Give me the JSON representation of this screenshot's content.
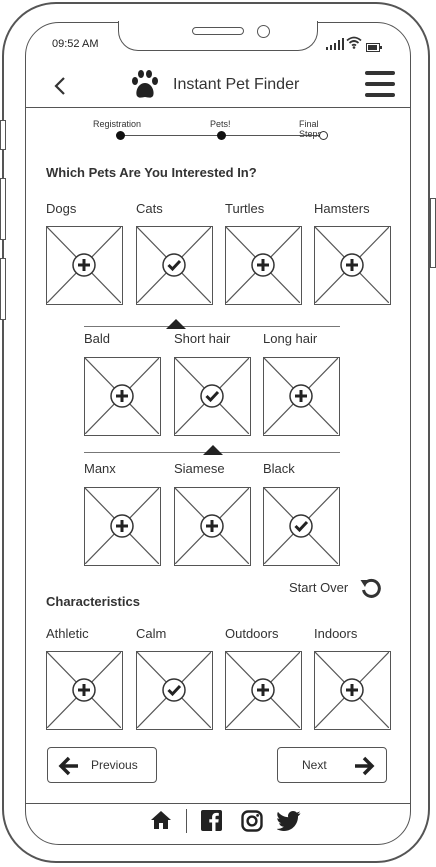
{
  "status_bar": {
    "time": "09:52 AM"
  },
  "header": {
    "title": "Instant Pet Finder",
    "logo_icon": "paw-icon"
  },
  "progress": {
    "steps": [
      "Registration",
      "Pets!",
      "Final Steps"
    ],
    "completed_steps": 2
  },
  "pets_section": {
    "heading": "Which Pets Are You Interested In?",
    "items": [
      {
        "label": "Dogs",
        "state": "add"
      },
      {
        "label": "Cats",
        "state": "checked"
      },
      {
        "label": "Turtles",
        "state": "add"
      },
      {
        "label": "Hamsters",
        "state": "add"
      }
    ]
  },
  "cat_hair": {
    "items": [
      {
        "label": "Bald",
        "state": "add"
      },
      {
        "label": "Short hair",
        "state": "checked"
      },
      {
        "label": "Long hair",
        "state": "add"
      }
    ]
  },
  "cat_breed": {
    "items": [
      {
        "label": "Manx",
        "state": "add"
      },
      {
        "label": "Siamese",
        "state": "add"
      },
      {
        "label": "Black",
        "state": "checked"
      }
    ]
  },
  "start_over": {
    "label": "Start Over"
  },
  "characteristics": {
    "heading": "Characteristics",
    "items": [
      {
        "label": "Athletic",
        "state": "add"
      },
      {
        "label": "Calm",
        "state": "checked"
      },
      {
        "label": "Outdoors",
        "state": "add"
      },
      {
        "label": "Indoors",
        "state": "add"
      }
    ]
  },
  "nav": {
    "previous_label": "Previous",
    "next_label": "Next"
  },
  "footer": {
    "icons": [
      "home-icon",
      "facebook-icon",
      "instagram-icon",
      "twitter-icon"
    ]
  }
}
